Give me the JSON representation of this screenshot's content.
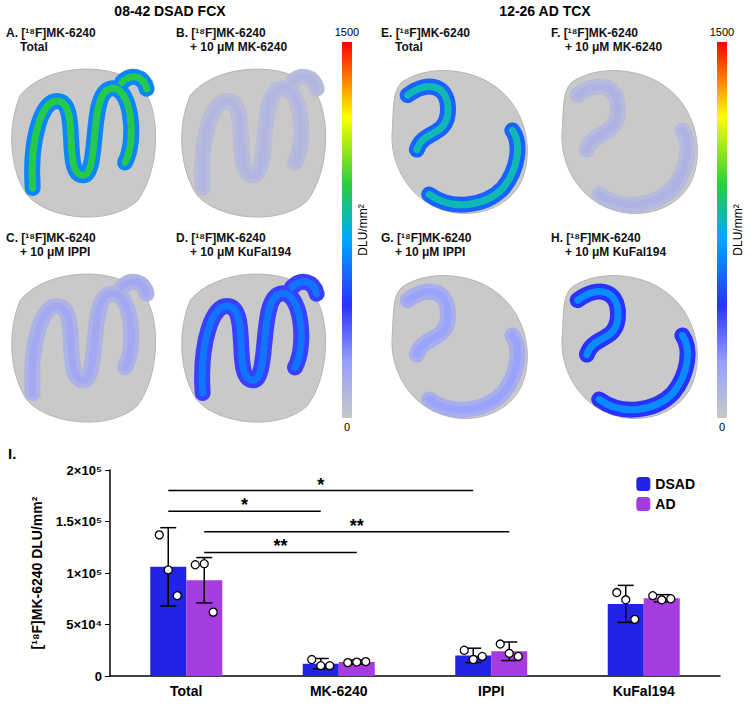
{
  "images": [
    {
      "title": "08-42 DSAD FCX",
      "panels": [
        {
          "label": "A.",
          "lines": [
            "[¹⁸F]MK-6240",
            "Total"
          ]
        },
        {
          "label": "B.",
          "lines": [
            "[¹⁸F]MK-6240",
            "+ 10 μM MK-6240"
          ]
        },
        {
          "label": "C.",
          "lines": [
            "[¹⁸F]MK-6240",
            "+ 10 μM IPPI"
          ]
        },
        {
          "label": "D.",
          "lines": [
            "[¹⁸F]MK-6240",
            "+ 10 μM KuFal194"
          ]
        }
      ]
    },
    {
      "title": "12-26 AD TCX",
      "panels": [
        {
          "label": "E.",
          "lines": [
            "[¹⁸F]MK-6240",
            "Total"
          ]
        },
        {
          "label": "F.",
          "lines": [
            "[¹⁸F]MK-6240",
            "+ 10 μM MK-6240"
          ]
        },
        {
          "label": "G.",
          "lines": [
            "[¹⁸F]MK-6240",
            "+ 10 μM IPPI"
          ]
        },
        {
          "label": "H.",
          "lines": [
            "[¹⁸F]MK-6240",
            "+ 10 μM KuFal194"
          ]
        }
      ]
    }
  ],
  "color_bar": {
    "max": 1500,
    "min": 0,
    "unit": "DLU/mm²"
  },
  "chart_data": {
    "type": "bar",
    "panel_label": "I.",
    "y_label": "[¹⁸F]MK-6240 DLU/mm²",
    "categories": [
      "Total",
      "MK-6240",
      "IPPI",
      "KuFal194"
    ],
    "series": [
      {
        "name": "DSAD",
        "color": "#2323e6",
        "values": [
          106000,
          12000,
          20000,
          70000
        ],
        "errors": [
          38000,
          5000,
          7000,
          18000
        ],
        "points": [
          [
            137000,
            103000,
            78000
          ],
          [
            16000,
            10000,
            10000
          ],
          [
            25000,
            16000,
            19000
          ],
          [
            81000,
            74000,
            55000
          ]
        ]
      },
      {
        "name": "AD",
        "color": "#a43ce0",
        "values": [
          93000,
          13500,
          24000,
          75500
        ],
        "errors": [
          22000,
          2000,
          9000,
          3500
        ],
        "points": [
          [
            108000,
            109000,
            62000
          ],
          [
            13000,
            13500,
            14000
          ],
          [
            31000,
            22000,
            19000
          ],
          [
            78000,
            74000,
            75000
          ]
        ]
      }
    ],
    "ylim": [
      0,
      200000
    ],
    "yticks": [
      0,
      {
        "value": 50000,
        "label": "5×10⁴"
      },
      {
        "value": 100000,
        "label": "1×10⁵"
      },
      {
        "value": 150000,
        "label": "1.5×10⁵"
      },
      {
        "value": 200000,
        "label": "2×10⁵"
      }
    ],
    "grid": false,
    "legend": "top-right",
    "significance": [
      {
        "from": "Total",
        "to": "IPPI",
        "series": "DSAD",
        "label": "*"
      },
      {
        "from": "Total",
        "to": "MK-6240",
        "series": "DSAD",
        "label": "*"
      },
      {
        "from": "Total",
        "to": "IPPI",
        "series": "AD",
        "label": "**"
      },
      {
        "from": "Total",
        "to": "MK-6240",
        "series": "AD",
        "label": "**"
      }
    ]
  }
}
